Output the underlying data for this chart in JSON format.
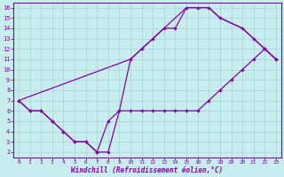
{
  "bg_color": "#c8eded",
  "grid_color": "#a8d8d8",
  "line_color": "#8800aa",
  "spine_color": "#8800aa",
  "label_color": "#8800aa",
  "xlabel": "Windchill (Refroidissement éolien,°C)",
  "xlim": [
    -0.5,
    23.5
  ],
  "ylim": [
    1.5,
    16.5
  ],
  "xticks": [
    0,
    1,
    2,
    3,
    4,
    5,
    6,
    7,
    8,
    9,
    10,
    11,
    12,
    13,
    14,
    15,
    16,
    17,
    18,
    19,
    20,
    21,
    22,
    23
  ],
  "yticks": [
    2,
    3,
    4,
    5,
    6,
    7,
    8,
    9,
    10,
    11,
    12,
    13,
    14,
    15,
    16
  ],
  "curve1_x": [
    0,
    1,
    2,
    3,
    4,
    5,
    6,
    7,
    8,
    9,
    10,
    11,
    12,
    13,
    14,
    15,
    16,
    17,
    18,
    20,
    21,
    22,
    23
  ],
  "curve1_y": [
    7,
    6,
    6,
    5,
    4,
    3,
    3,
    2,
    2,
    6,
    11,
    12,
    13,
    14,
    14,
    16,
    16,
    16,
    15,
    14,
    13,
    12,
    11
  ],
  "curve2_x": [
    0,
    1,
    2,
    3,
    4,
    5,
    6,
    7,
    8,
    9,
    10,
    11,
    12,
    13,
    14,
    15,
    16,
    17,
    18,
    19,
    20,
    21,
    22,
    23
  ],
  "curve2_y": [
    7,
    6,
    6,
    5,
    4,
    3,
    3,
    2,
    5,
    6,
    6,
    6,
    6,
    6,
    6,
    6,
    6,
    7,
    8,
    9,
    10,
    11,
    12,
    11
  ],
  "curve3_x": [
    0,
    10,
    15,
    16,
    17,
    18,
    20,
    23
  ],
  "curve3_y": [
    7,
    11,
    16,
    16,
    16,
    15,
    14,
    11
  ]
}
